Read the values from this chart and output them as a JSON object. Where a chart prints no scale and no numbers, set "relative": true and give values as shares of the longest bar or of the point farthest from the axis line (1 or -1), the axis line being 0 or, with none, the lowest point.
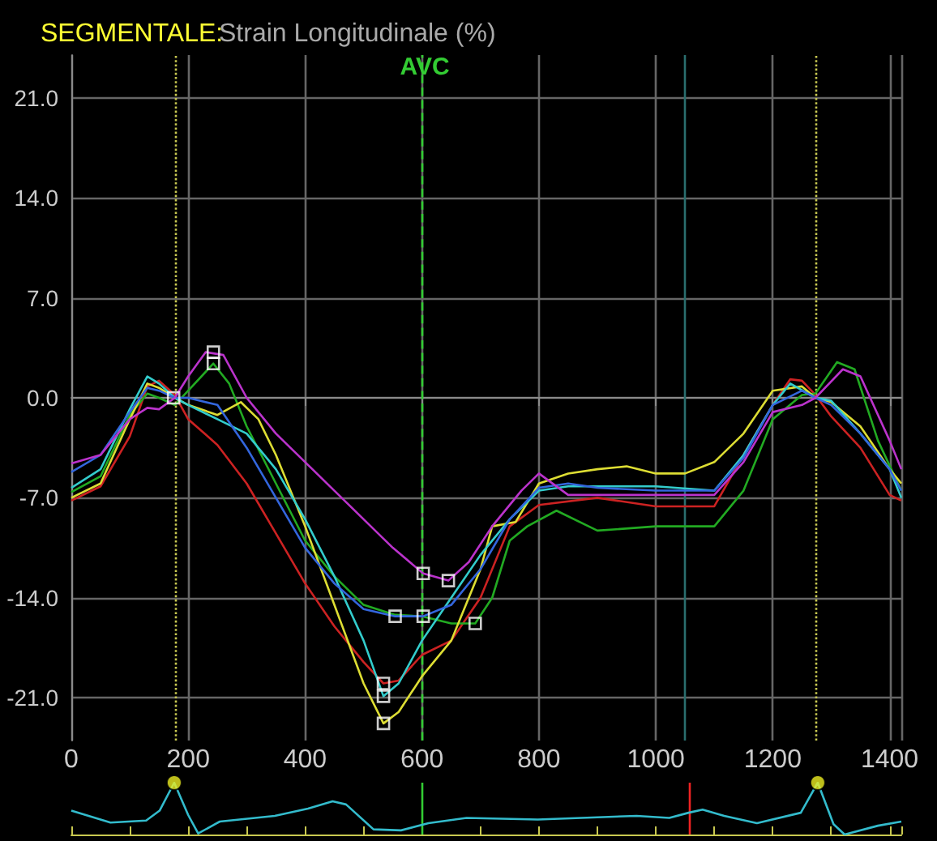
{
  "chart_data": [
    {
      "type": "line",
      "title": "SEGMENTALE:",
      "subtitle": "Strain Longitudinale (%)",
      "xlim": [
        0,
        1420
      ],
      "ylim": [
        -24,
        24
      ],
      "xticks": [
        0,
        200,
        400,
        600,
        800,
        1000,
        1200,
        1400
      ],
      "yticks": [
        {
          "value": -21,
          "label": "-21.0"
        },
        {
          "value": -14,
          "label": "-14.0"
        },
        {
          "value": -7,
          "label": "-7.0"
        },
        {
          "value": 0,
          "label": "0.0"
        },
        {
          "value": 7,
          "label": "7.0"
        },
        {
          "value": 14,
          "label": "14.0"
        },
        {
          "value": 21,
          "label": "21.0"
        }
      ],
      "grid": true,
      "marker": "none",
      "line_style": "solid",
      "ref_lines": [
        {
          "axis": "x",
          "value": 177,
          "color": "#c8c850",
          "line_style": "dotted"
        },
        {
          "axis": "x",
          "value": 600,
          "label": "AVC",
          "color": "#33cc33",
          "line_style": "dashed"
        },
        {
          "axis": "x",
          "value": 1048,
          "color": "#2a6e6e",
          "line_style": "solid"
        },
        {
          "axis": "x",
          "value": 1273,
          "color": "#c8c850",
          "line_style": "dotted"
        }
      ],
      "series": [
        {
          "color": "#cc2222",
          "x": [
            0,
            50,
            100,
            130,
            150,
            177,
            200,
            250,
            300,
            350,
            400,
            450,
            500,
            534,
            560,
            600,
            650,
            700,
            750,
            800,
            900,
            1000,
            1100,
            1150,
            1200,
            1230,
            1250,
            1273,
            1300,
            1350,
            1400,
            1420
          ],
          "values": [
            -7.2,
            -6.2,
            -2.7,
            0.8,
            1.2,
            0.2,
            -1.5,
            -3.3,
            -6,
            -9.5,
            -13,
            -16,
            -18.5,
            -20,
            -19.8,
            -18,
            -17,
            -14,
            -9,
            -7.5,
            -7,
            -7.6,
            -7.6,
            -4,
            -0.5,
            1.3,
            1.2,
            0.2,
            -1.3,
            -3.5,
            -6.8,
            -7.2
          ]
        },
        {
          "color": "#22aa22",
          "x": [
            0,
            50,
            100,
            130,
            150,
            177,
            200,
            243,
            270,
            300,
            350,
            400,
            450,
            500,
            554,
            600,
            650,
            691,
            720,
            750,
            780,
            830,
            900,
            1000,
            1100,
            1150,
            1200,
            1250,
            1273,
            1310,
            1340,
            1380,
            1420
          ],
          "values": [
            -6.6,
            -5.5,
            -1.2,
            0.3,
            0,
            -0.5,
            0.5,
            2.4,
            1,
            -2,
            -6,
            -10,
            -12.5,
            -14.5,
            -15.2,
            -15.3,
            -15.8,
            -15.8,
            -14,
            -10,
            -9,
            -7.9,
            -9.3,
            -9,
            -9,
            -6.5,
            -1.5,
            0.2,
            0.3,
            2.5,
            2,
            -3,
            -6.5
          ]
        },
        {
          "color": "#dddd33",
          "x": [
            0,
            50,
            100,
            130,
            150,
            177,
            200,
            250,
            290,
            320,
            350,
            400,
            450,
            500,
            534,
            560,
            600,
            650,
            700,
            720,
            760,
            800,
            850,
            900,
            950,
            1000,
            1050,
            1100,
            1150,
            1200,
            1250,
            1273,
            1300,
            1350,
            1400,
            1420
          ],
          "values": [
            -7,
            -6,
            -1.5,
            1,
            0.7,
            0,
            -0.5,
            -1.2,
            -0.3,
            -1.5,
            -4,
            -9,
            -14.5,
            -20,
            -22.8,
            -22,
            -19.5,
            -17,
            -12,
            -9,
            -8.7,
            -6,
            -5.3,
            -5,
            -4.8,
            -5.3,
            -5.3,
            -4.5,
            -2.5,
            0.5,
            0.8,
            0,
            -0.3,
            -2,
            -5,
            -6
          ]
        },
        {
          "color": "#33cccc",
          "x": [
            0,
            50,
            100,
            130,
            150,
            177,
            200,
            250,
            300,
            350,
            400,
            450,
            500,
            534,
            560,
            600,
            650,
            700,
            750,
            800,
            850,
            900,
            1000,
            1100,
            1150,
            1200,
            1230,
            1273,
            1300,
            1350,
            1400,
            1420
          ],
          "values": [
            -6.3,
            -5,
            -0.8,
            1.5,
            1,
            0,
            -0.5,
            -1.5,
            -2.5,
            -5,
            -8.5,
            -12.5,
            -17,
            -20.9,
            -20,
            -17,
            -14,
            -11,
            -8.5,
            -6.5,
            -6.2,
            -6.2,
            -6.2,
            -6.5,
            -4,
            -0.5,
            1,
            0,
            -0.2,
            -2.5,
            -5,
            -7
          ]
        },
        {
          "color": "#3366dd",
          "x": [
            0,
            50,
            100,
            130,
            150,
            177,
            200,
            250,
            300,
            350,
            400,
            450,
            500,
            554,
            602,
            650,
            700,
            750,
            800,
            850,
            900,
            1000,
            1100,
            1150,
            1200,
            1250,
            1273,
            1300,
            1350,
            1400,
            1420
          ],
          "values": [
            -5.2,
            -4,
            -1,
            0.7,
            0.5,
            0,
            0,
            -0.5,
            -3.5,
            -7,
            -10.5,
            -13,
            -14.8,
            -15.3,
            -15.3,
            -14.5,
            -12,
            -8.5,
            -6.3,
            -6,
            -6.3,
            -6.5,
            -6.5,
            -4.2,
            -0.5,
            0.5,
            0,
            -0.5,
            -2.5,
            -5,
            -6.5
          ]
        },
        {
          "color": "#bb33cc",
          "x": [
            0,
            50,
            100,
            130,
            150,
            177,
            200,
            230,
            260,
            300,
            350,
            400,
            450,
            500,
            550,
            602,
            645,
            680,
            720,
            770,
            800,
            850,
            900,
            1000,
            1100,
            1150,
            1200,
            1250,
            1273,
            1320,
            1350,
            1400,
            1420
          ],
          "values": [
            -4.6,
            -4,
            -1.5,
            -0.7,
            -0.8,
            0,
            1.5,
            3.2,
            3,
            0,
            -2.5,
            -4.5,
            -6.5,
            -8.5,
            -10.5,
            -12.3,
            -12.8,
            -11.5,
            -9,
            -6.5,
            -5.3,
            -6.8,
            -6.8,
            -6.8,
            -6.8,
            -4.5,
            -1,
            -0.5,
            0,
            2,
            1.5,
            -3,
            -5
          ]
        },
        {
          "type": "scatter",
          "marker": "square",
          "color": "#ffffff",
          "x": [
            175,
            243,
            243,
            534,
            534,
            534,
            554,
            602,
            602,
            645,
            691
          ],
          "values": [
            0,
            3.2,
            2.4,
            -20,
            -20.9,
            -22.8,
            -15.3,
            -15.3,
            -12.3,
            -12.8,
            -15.8
          ]
        }
      ]
    },
    {
      "type": "line",
      "relative": true,
      "xlim": [
        0,
        1420
      ],
      "xticks": [
        0,
        100,
        200,
        300,
        400,
        500,
        600,
        700,
        800,
        900,
        1000,
        1100,
        1200,
        1300,
        1400
      ],
      "tick_labels": false,
      "marker": "none",
      "ref_lines": [
        {
          "axis": "x",
          "value": 600,
          "color": "#33cc33",
          "line_style": "solid"
        },
        {
          "axis": "x",
          "value": 1056,
          "color": "#ee2222",
          "line_style": "solid"
        }
      ],
      "series": [
        {
          "color": "#33bbcc",
          "x": [
            0,
            67,
            128,
            151,
            176,
            200,
            217,
            254,
            348,
            405,
            447,
            470,
            517,
            564,
            611,
            676,
            798,
            967,
            1023,
            1056,
            1080,
            1117,
            1173,
            1248,
            1277,
            1304,
            1323,
            1380,
            1420
          ],
          "values": [
            0.46,
            0.23,
            0.27,
            0.46,
            1,
            0.375,
            0.02,
            0.25,
            0.36,
            0.5,
            0.64,
            0.58,
            0.1,
            0.08,
            0.22,
            0.32,
            0.29,
            0.36,
            0.32,
            0.42,
            0.48,
            0.36,
            0.22,
            0.42,
            1,
            0.2,
            0,
            0.17,
            0.25
          ]
        },
        {
          "type": "scatter",
          "marker": "circle",
          "color": "#eeee22",
          "x": [
            176,
            1277
          ],
          "values": [
            1,
            1
          ]
        }
      ]
    }
  ]
}
